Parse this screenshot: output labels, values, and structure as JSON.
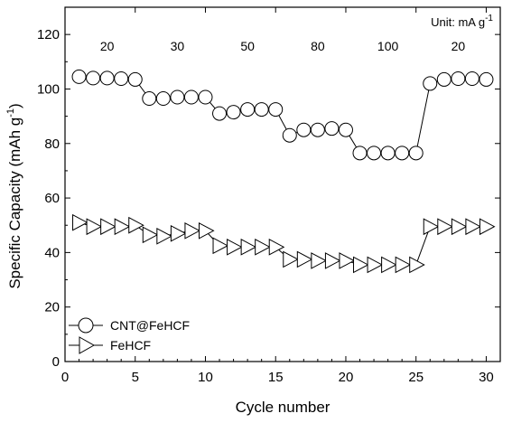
{
  "chart_data": {
    "type": "line",
    "xlabel": "Cycle number",
    "ylabel": "Specific Capacity (mAh g",
    "ylabel_sup": "-1",
    "ylabel_tail": ")",
    "xlim": [
      0,
      31
    ],
    "ylim": [
      0,
      130
    ],
    "xticks": [
      0,
      5,
      10,
      15,
      20,
      25,
      30
    ],
    "yticks": [
      0,
      20,
      40,
      60,
      80,
      100,
      120
    ],
    "grid": false,
    "legend_position": "bottom-left",
    "unit_annotation": "Unit: mA g",
    "unit_sup": "-1",
    "rate_annotations": [
      {
        "label": "20",
        "x": 3
      },
      {
        "label": "30",
        "x": 8
      },
      {
        "label": "50",
        "x": 13
      },
      {
        "label": "80",
        "x": 18
      },
      {
        "label": "100",
        "x": 23
      },
      {
        "label": "20",
        "x": 28
      }
    ],
    "x": [
      1,
      2,
      3,
      4,
      5,
      6,
      7,
      8,
      9,
      10,
      11,
      12,
      13,
      14,
      15,
      16,
      17,
      18,
      19,
      20,
      21,
      22,
      23,
      24,
      25,
      26,
      27,
      28,
      29,
      30
    ],
    "series": [
      {
        "name": "CNT@FeHCF",
        "marker": "circle",
        "values": [
          104.5,
          104,
          104,
          103.8,
          103.5,
          96.5,
          96.5,
          97,
          97,
          97,
          91,
          91.5,
          92.5,
          92.5,
          92.5,
          83,
          85,
          85,
          85.5,
          85,
          76.5,
          76.5,
          76.5,
          76.5,
          76.5,
          102,
          103.5,
          103.8,
          103.8,
          103.5
        ]
      },
      {
        "name": "FeHCF",
        "marker": "triangle-right",
        "values": [
          51,
          49.5,
          49.5,
          49.5,
          50,
          46.5,
          46,
          47,
          48,
          48,
          42.5,
          42,
          42,
          42,
          42,
          37.5,
          37.5,
          37,
          37,
          37,
          35.5,
          35.5,
          35.5,
          35.5,
          35.5,
          49.5,
          49.5,
          49.5,
          49.5,
          49.5
        ]
      }
    ]
  }
}
